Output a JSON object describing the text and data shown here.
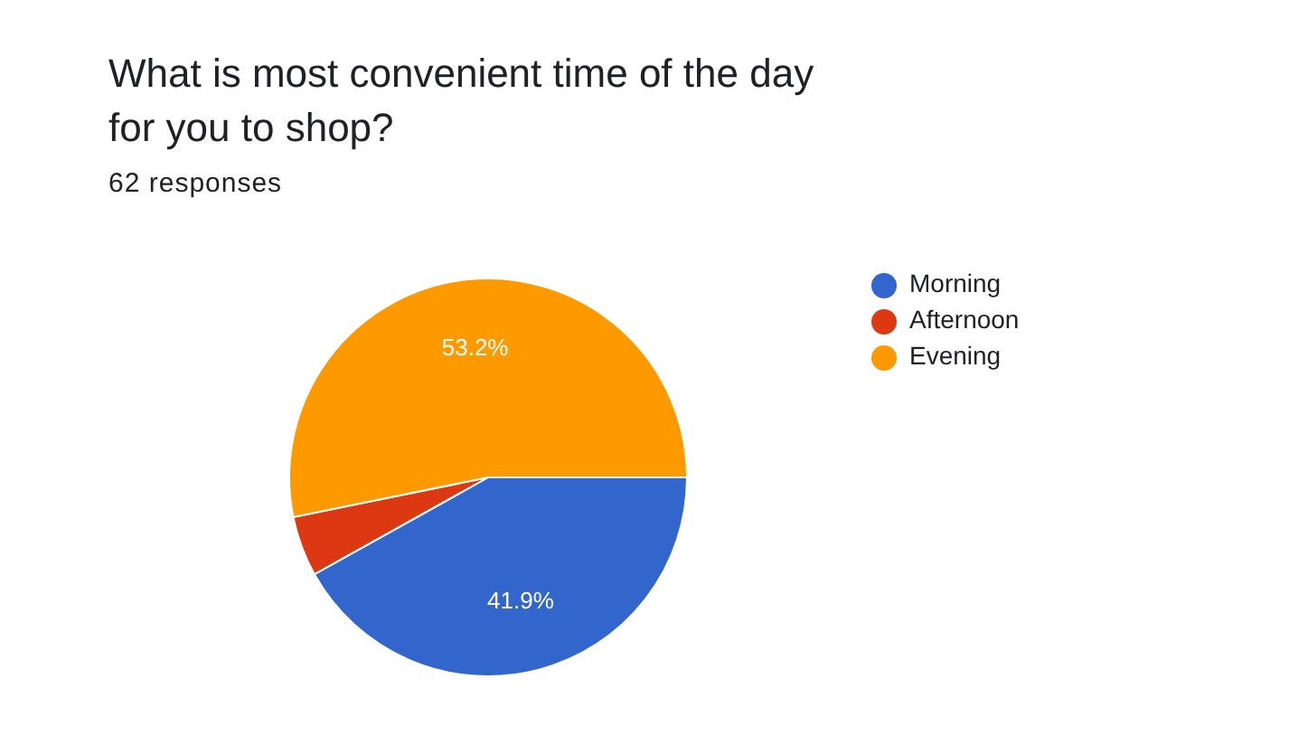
{
  "chart_data": {
    "type": "pie",
    "title": "What is most convenient time of the day for you to shop?",
    "subtitle": "62 responses",
    "categories": [
      "Morning",
      "Afternoon",
      "Evening"
    ],
    "values": [
      41.9,
      4.9,
      53.2
    ],
    "colors": [
      "#3366cc",
      "#dc3912",
      "#ff9900"
    ],
    "value_labels": [
      "41.9%",
      null,
      "53.2%"
    ],
    "legend": "top right"
  }
}
